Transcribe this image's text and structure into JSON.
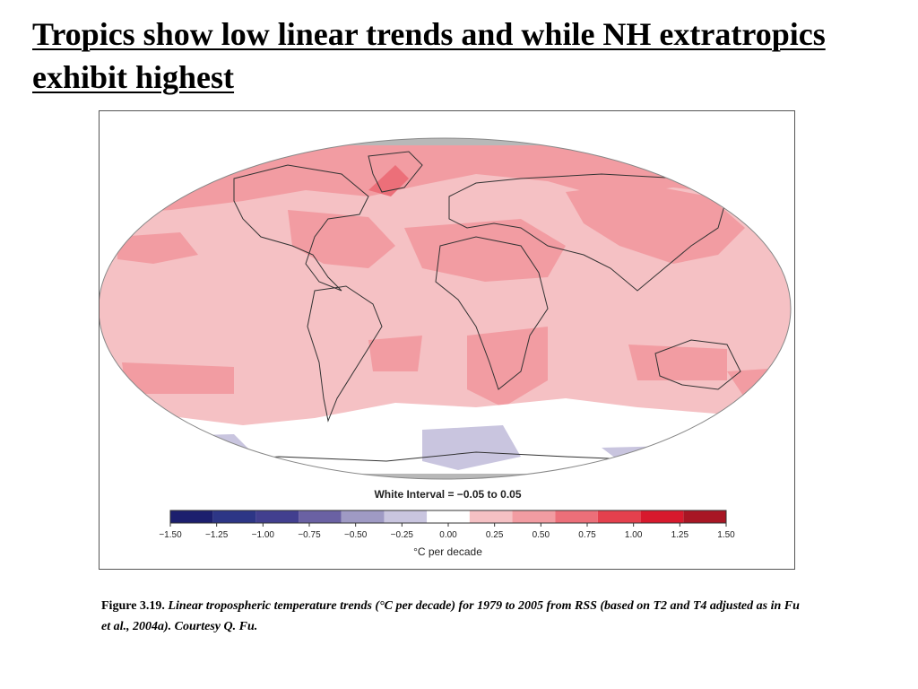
{
  "slide": {
    "title": "Tropics show low linear trends and while NH extratropics exhibit highest"
  },
  "map": {
    "interval_label": "White Interval = −0.05 to 0.05",
    "units_label": "°C per decade"
  },
  "colorbar": {
    "ticks": [
      "−1.50",
      "−1.25",
      "−1.00",
      "−0.75",
      "−0.50",
      "−0.25",
      "0.00",
      "0.25",
      "0.50",
      "0.75",
      "1.00",
      "1.25",
      "1.50"
    ],
    "colors": [
      "#1c1f6e",
      "#2d3686",
      "#423f8f",
      "#6a61a3",
      "#9f9ac4",
      "#c9c5df",
      "#ffffff",
      "#f5c1c4",
      "#f29ca2",
      "#ec6f79",
      "#e4404d",
      "#d7192d",
      "#a81624"
    ]
  },
  "caption": {
    "label": "Figure 3.19.",
    "text": "Linear tropospheric temperature trends (°C per decade) for 1979 to 2005 from RSS (based on T2 and T4 adjusted as in Fu et al., 2004a). Courtesy Q. Fu."
  }
}
